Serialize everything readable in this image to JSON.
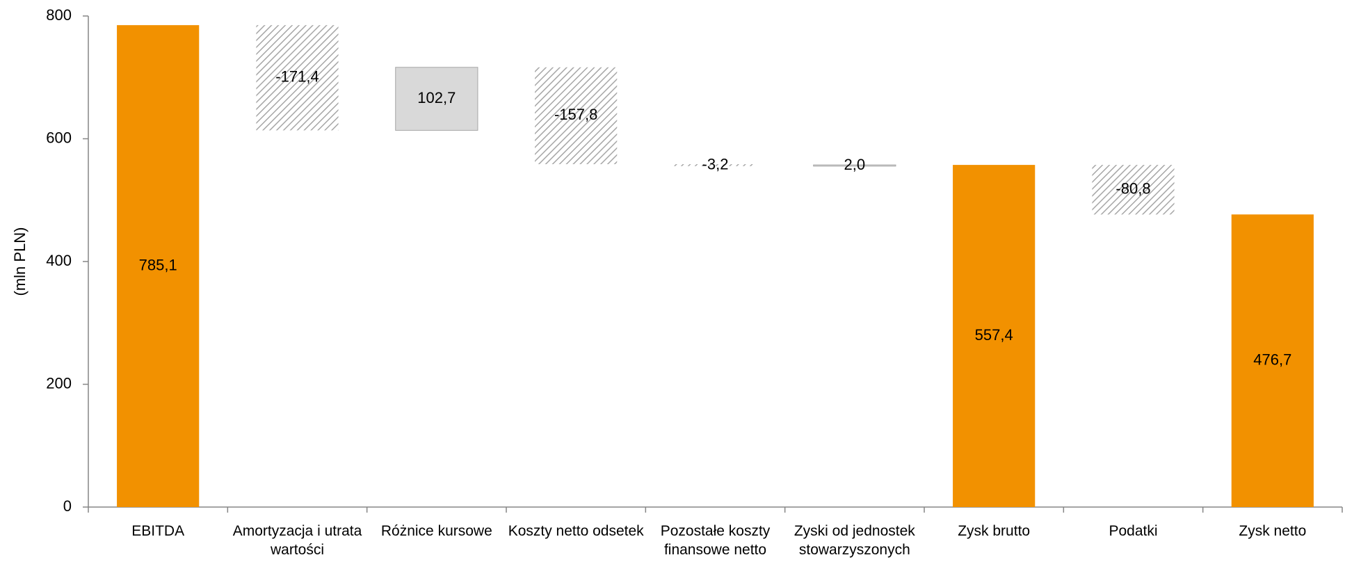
{
  "chart_data": {
    "type": "waterfall",
    "y_label": "(mln PLN)",
    "categories": [
      "EBITDA",
      "Amortyzacja i utrata wartości",
      "Różnice kursowe",
      "Koszty netto odsetek",
      "Pozostałe koszty finansowe netto",
      "Zyski od jednostek stowarzyszonych",
      "Zysk brutto",
      "Podatki",
      "Zysk netto"
    ],
    "values": [
      785.1,
      -171.4,
      102.7,
      -157.8,
      -3.2,
      2.0,
      557.4,
      -80.8,
      476.7
    ],
    "value_labels": [
      "785,1",
      "-171,4",
      "102,7",
      "-157,8",
      "-3,2",
      "2,0",
      "557,4",
      "-80,8",
      "476,7"
    ],
    "kinds": [
      "total",
      "change",
      "change",
      "change",
      "change",
      "change",
      "total",
      "change",
      "total"
    ],
    "total_color": "#f29100",
    "increase_color": "#d9d9d9",
    "decrease_color": "#a6a6a6",
    "ylim": [
      0,
      800
    ],
    "yticks": [
      0,
      200,
      400,
      600,
      800
    ]
  }
}
